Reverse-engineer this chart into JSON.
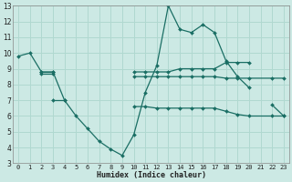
{
  "xlabel": "Humidex (Indice chaleur)",
  "bg_color": "#cce9e4",
  "grid_color": "#b0d8d0",
  "line_color": "#1a6e64",
  "xlim": [
    -0.5,
    23.5
  ],
  "ylim": [
    3,
    13
  ],
  "xticks": [
    0,
    1,
    2,
    3,
    4,
    5,
    6,
    7,
    8,
    9,
    10,
    11,
    12,
    13,
    14,
    15,
    16,
    17,
    18,
    19,
    20,
    21,
    22,
    23
  ],
  "yticks": [
    3,
    4,
    5,
    6,
    7,
    8,
    9,
    10,
    11,
    12,
    13
  ],
  "line1_x": [
    0,
    1,
    2,
    3,
    4,
    5,
    6,
    7,
    8,
    9,
    10,
    11,
    12,
    13,
    14,
    15,
    16,
    17,
    18,
    19,
    20,
    22,
    23
  ],
  "line1_y": [
    9.8,
    10.0,
    8.8,
    8.8,
    7.0,
    6.0,
    5.2,
    4.4,
    3.9,
    3.5,
    4.8,
    7.5,
    9.2,
    13.0,
    11.5,
    11.3,
    11.8,
    11.3,
    9.5,
    8.5,
    7.8,
    6.7,
    6.0
  ],
  "line2_x": [
    2,
    3,
    10,
    11,
    12,
    13,
    14,
    15,
    16,
    17,
    18,
    19,
    20
  ],
  "line2_y": [
    8.8,
    8.8,
    8.8,
    8.8,
    8.8,
    8.8,
    9.0,
    9.0,
    9.0,
    9.0,
    9.4,
    9.4,
    9.4
  ],
  "line3_x": [
    2,
    3,
    10,
    11,
    12,
    13,
    14,
    15,
    16,
    17,
    18,
    19,
    20,
    22,
    23
  ],
  "line3_y": [
    8.7,
    8.7,
    8.5,
    8.5,
    8.5,
    8.5,
    8.5,
    8.5,
    8.5,
    8.5,
    8.4,
    8.4,
    8.4,
    8.4,
    8.4
  ],
  "line4_x": [
    3,
    4,
    10,
    11,
    12,
    13,
    14,
    15,
    16,
    17,
    18,
    19,
    20,
    22,
    23
  ],
  "line4_y": [
    7.0,
    7.0,
    6.6,
    6.6,
    6.5,
    6.5,
    6.5,
    6.5,
    6.5,
    6.5,
    6.3,
    6.1,
    6.0,
    6.0,
    6.0
  ]
}
